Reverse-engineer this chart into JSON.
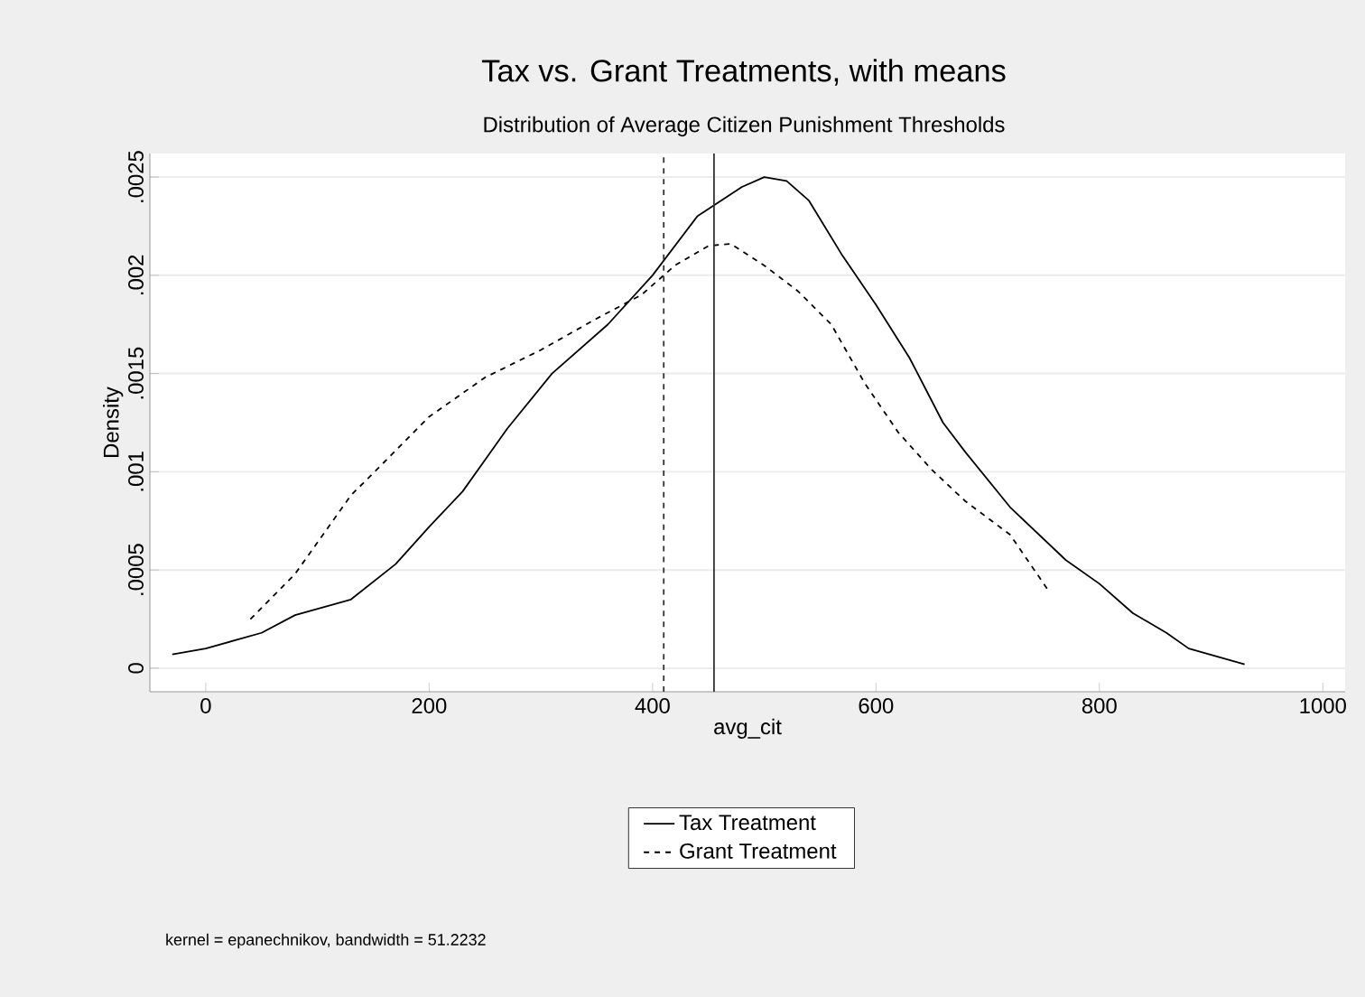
{
  "chart_data": {
    "type": "line",
    "title": "Tax vs. Grant Treatments, with means",
    "subtitle": "Distribution of Average Citizen Punishment Thresholds",
    "xlabel": "avg_cit",
    "ylabel": "Density",
    "annotations": [
      "kernel = epanechnikov, bandwidth = 51.2232"
    ],
    "xlim": [
      -50,
      1020
    ],
    "ylim": [
      -0.00012,
      0.00262
    ],
    "xticks": [
      0,
      200,
      400,
      600,
      800,
      1000
    ],
    "yticks": [
      {
        "value": 0,
        "label": "0"
      },
      {
        "value": 0.0005,
        "label": ".0005"
      },
      {
        "value": 0.001,
        "label": ".001"
      },
      {
        "value": 0.0015,
        "label": ".0015"
      },
      {
        "value": 0.002,
        "label": ".002"
      },
      {
        "value": 0.0025,
        "label": ".0025"
      }
    ],
    "grid": "y",
    "legend": "bottom",
    "marker": "none",
    "ref_lines": [
      {
        "axis": "x",
        "value": 410,
        "color": "#333333",
        "line_style": "dashed"
      },
      {
        "axis": "x",
        "value": 455,
        "color": "#333333",
        "line_style": "solid"
      }
    ],
    "series": [
      {
        "name": "Tax Treatment",
        "color": "#000000",
        "line_style": "solid",
        "x": [
          -30,
          0,
          50,
          80,
          130,
          170,
          200,
          230,
          270,
          310,
          360,
          400,
          440,
          480,
          500,
          520,
          540,
          570,
          600,
          630,
          660,
          680,
          720,
          770,
          800,
          830,
          860,
          880,
          930
        ],
        "values": [
          7e-05,
          0.0001,
          0.00018,
          0.00027,
          0.00035,
          0.00053,
          0.00072,
          0.0009,
          0.00122,
          0.0015,
          0.00175,
          0.002,
          0.0023,
          0.00245,
          0.0025,
          0.00248,
          0.00238,
          0.0021,
          0.00185,
          0.00158,
          0.00125,
          0.0011,
          0.00082,
          0.00055,
          0.00043,
          0.00028,
          0.00018,
          0.0001,
          2e-05
        ]
      },
      {
        "name": "Grant Treatment",
        "color": "#000000",
        "line_style": "dashed",
        "x": [
          40,
          80,
          130,
          160,
          200,
          250,
          300,
          350,
          390,
          420,
          450,
          470,
          500,
          530,
          560,
          590,
          620,
          650,
          680,
          720,
          755
        ],
        "values": [
          0.00025,
          0.00048,
          0.00088,
          0.00105,
          0.00128,
          0.00148,
          0.00162,
          0.00178,
          0.0019,
          0.00205,
          0.00215,
          0.00216,
          0.00205,
          0.00192,
          0.00175,
          0.00145,
          0.0012,
          0.00101,
          0.00085,
          0.00068,
          0.00039
        ]
      }
    ]
  }
}
